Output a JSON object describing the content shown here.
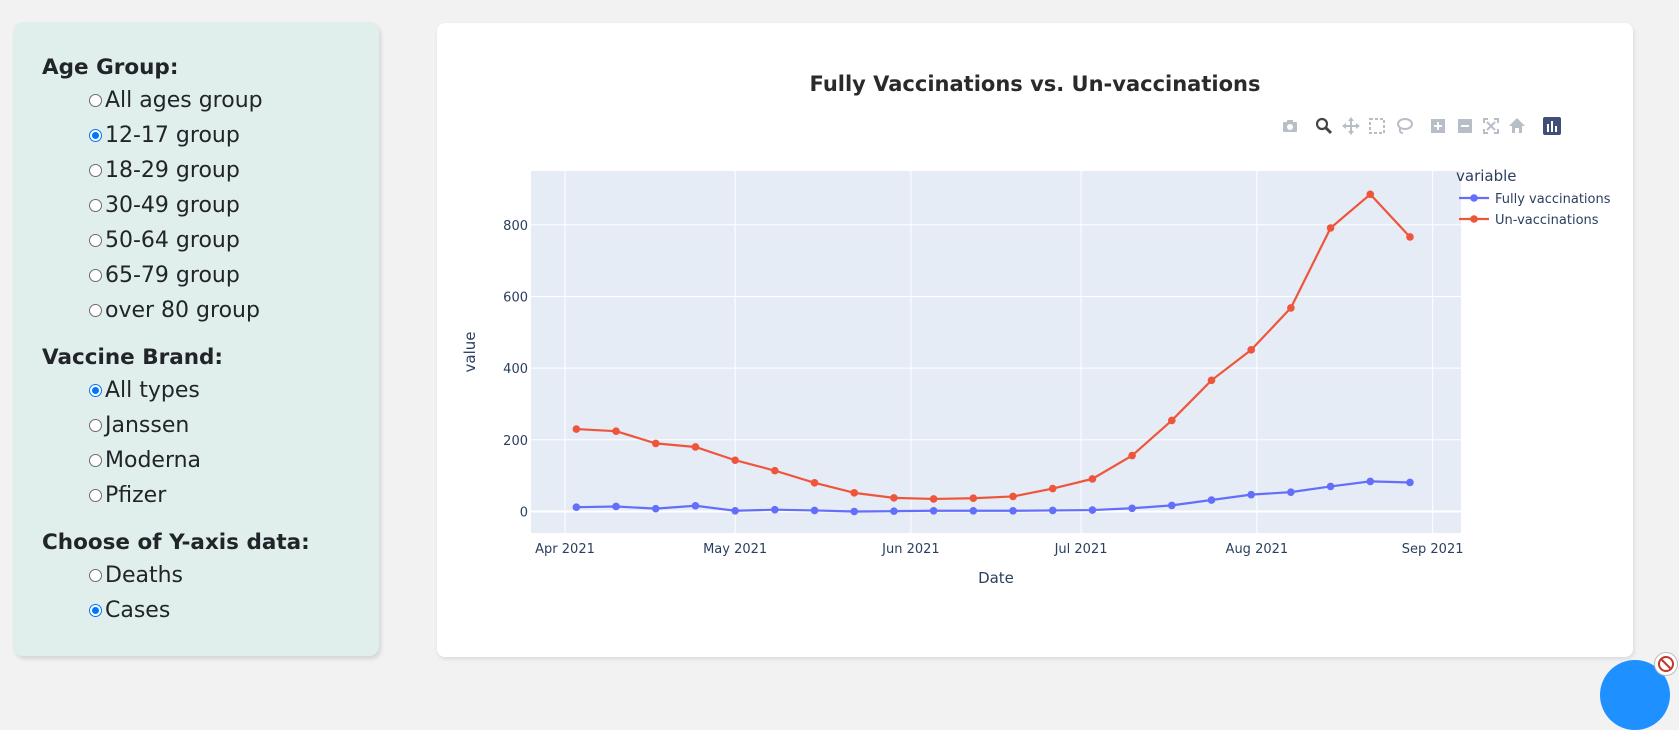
{
  "sidebar": {
    "age_group": {
      "title": "Age Group:",
      "options": [
        "All ages group",
        "12-17 group",
        "18-29 group",
        "30-49 group",
        "50-64 group",
        "65-79 group",
        "over 80 group"
      ],
      "selected": "12-17 group"
    },
    "vaccine_brand": {
      "title": "Vaccine Brand:",
      "options": [
        "All types",
        "Janssen",
        "Moderna",
        "Pfizer"
      ],
      "selected": "All types"
    },
    "y_axis": {
      "title": "Choose of Y-axis data:",
      "options": [
        "Deaths",
        "Cases"
      ],
      "selected": "Cases"
    }
  },
  "modebar": {
    "icons": [
      "camera-icon",
      "zoom-icon",
      "pan-icon",
      "box-select-icon",
      "lasso-select-icon",
      "zoom-in-icon",
      "zoom-out-icon",
      "autoscale-icon",
      "reset-axes-icon",
      "plotly-logo-icon"
    ],
    "active": "zoom-icon"
  },
  "colors": {
    "fully": "#636efa",
    "un": "#ef553b",
    "plot_bg": "#e5ecf6",
    "sidebar_bg": "#e0eeec",
    "radio_checked": "#0075ff"
  },
  "chart_data": {
    "type": "line",
    "title": "Fully Vaccinations vs. Un-vaccinations",
    "xlabel": "Date",
    "ylabel": "value",
    "legend_title": "variable",
    "legend_position": "top-right",
    "grid": true,
    "x": [
      "2021-04-03",
      "2021-04-10",
      "2021-04-17",
      "2021-04-24",
      "2021-05-01",
      "2021-05-08",
      "2021-05-15",
      "2021-05-22",
      "2021-05-29",
      "2021-06-05",
      "2021-06-12",
      "2021-06-19",
      "2021-06-26",
      "2021-07-03",
      "2021-07-10",
      "2021-07-17",
      "2021-07-24",
      "2021-07-31",
      "2021-08-07",
      "2021-08-14",
      "2021-08-21",
      "2021-08-28"
    ],
    "series": [
      {
        "name": "Fully vaccinations",
        "values": [
          12,
          14,
          8,
          16,
          2,
          5,
          3,
          0,
          1,
          2,
          2,
          2,
          3,
          4,
          9,
          17,
          32,
          47,
          54,
          70,
          84,
          81
        ]
      },
      {
        "name": "Un-vaccinations",
        "values": [
          230,
          224,
          190,
          180,
          143,
          114,
          80,
          52,
          38,
          35,
          37,
          42,
          64,
          91,
          156,
          254,
          366,
          451,
          568,
          791,
          885,
          766
        ]
      }
    ],
    "x_ticks": [
      {
        "date": "2021-04-01",
        "label": "Apr 2021"
      },
      {
        "date": "2021-05-01",
        "label": "May 2021"
      },
      {
        "date": "2021-06-01",
        "label": "Jun 2021"
      },
      {
        "date": "2021-07-01",
        "label": "Jul 2021"
      },
      {
        "date": "2021-08-01",
        "label": "Aug 2021"
      },
      {
        "date": "2021-09-01",
        "label": "Sep 2021"
      }
    ],
    "xlim": [
      "2021-03-26",
      "2021-09-06"
    ],
    "y_ticks": [
      0,
      200,
      400,
      600,
      800
    ],
    "ylim": [
      -60,
      950
    ]
  }
}
